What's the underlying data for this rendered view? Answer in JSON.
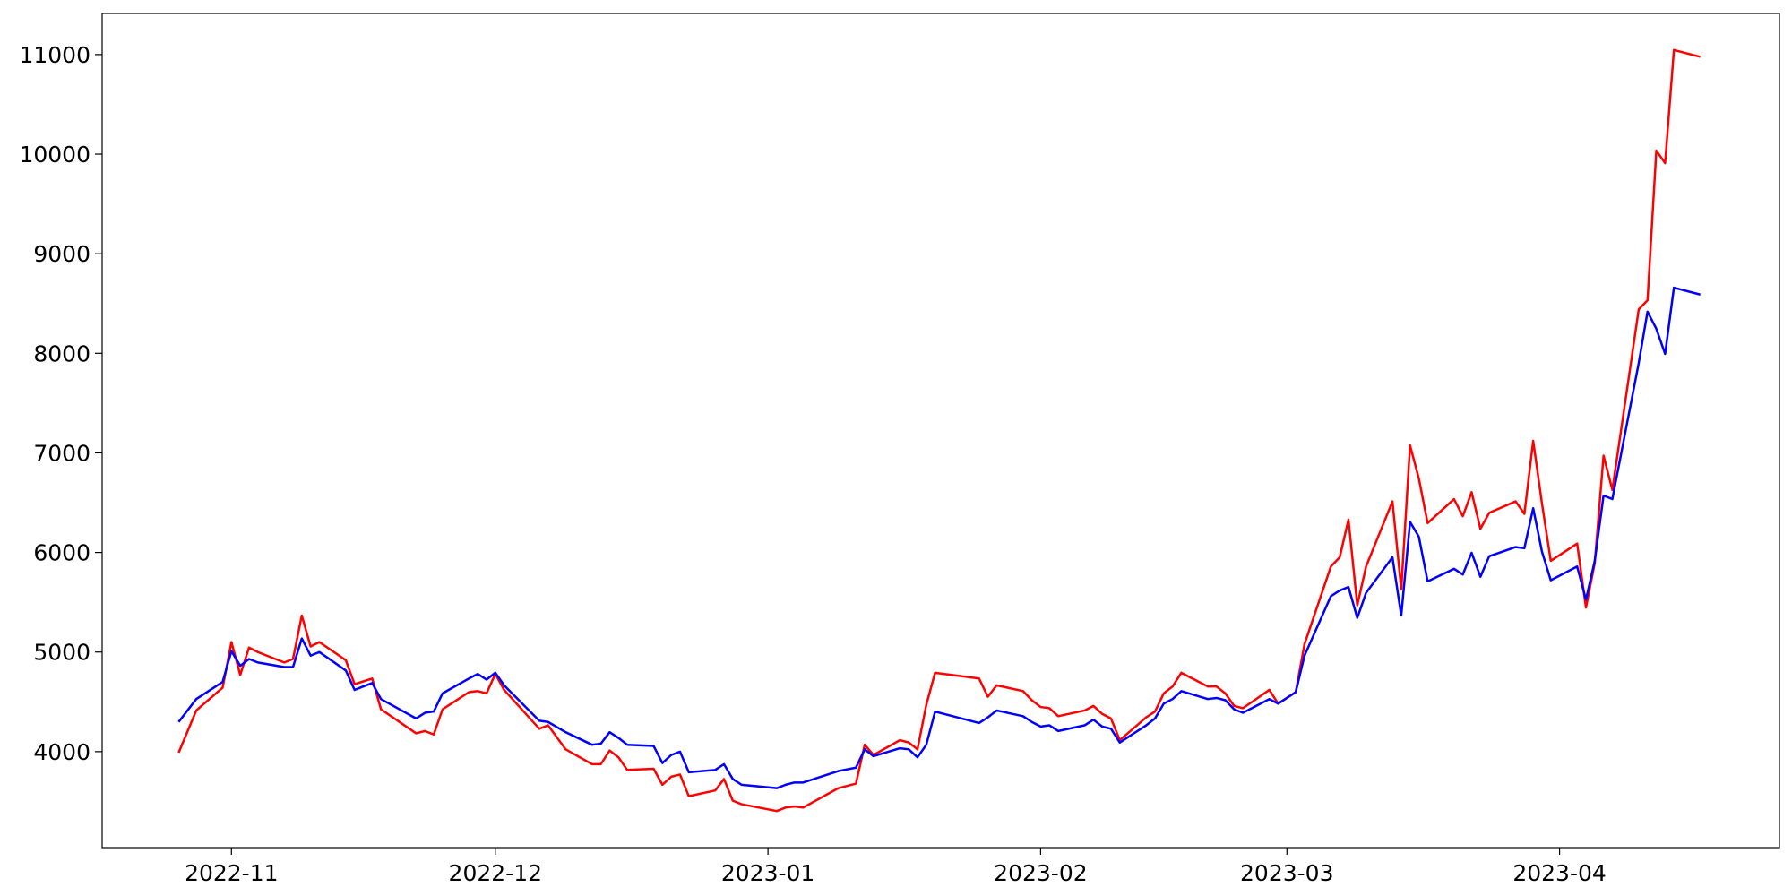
{
  "chart_data": {
    "type": "line",
    "x": [
      19291,
      19293,
      19296,
      19297,
      19298,
      19299,
      19300,
      19303,
      19304,
      19305,
      19306,
      19307,
      19310,
      19311,
      19313,
      19314,
      19318,
      19319,
      19320,
      19321,
      19324,
      19325,
      19326,
      19327,
      19328,
      19332,
      19333,
      19335,
      19338,
      19339,
      19340,
      19341,
      19342,
      19345,
      19346,
      19347,
      19348,
      19349,
      19352,
      19353,
      19354,
      19355,
      19359,
      19360,
      19361,
      19362,
      19366,
      19368,
      19369,
      19370,
      19373,
      19374,
      19375,
      19376,
      19377,
      19382,
      19383,
      19384,
      19387,
      19388,
      19389,
      19390,
      19391,
      19394,
      19395,
      19396,
      19397,
      19398,
      19401,
      19402,
      19403,
      19404,
      19405,
      19408,
      19409,
      19410,
      19411,
      19412,
      19415,
      19416,
      19418,
      19419,
      19422,
      19423,
      19424,
      19425,
      19426,
      19429,
      19430,
      19431,
      19432,
      19433,
      19436,
      19437,
      19438,
      19439,
      19440,
      19443,
      19444,
      19445,
      19446,
      19447,
      19450,
      19451,
      19452,
      19453,
      19454,
      19457,
      19458,
      19459,
      19460,
      19461,
      19464
    ],
    "series": [
      {
        "color": "red",
        "values": [
          3990,
          4413,
          4643,
          5100,
          4770,
          5045,
          5000,
          4895,
          4930,
          5366,
          5056,
          5100,
          4918,
          4677,
          4734,
          4425,
          4184,
          4207,
          4172,
          4425,
          4597,
          4608,
          4585,
          4780,
          4620,
          4230,
          4264,
          4023,
          3874,
          3874,
          4011,
          3943,
          3816,
          3828,
          3667,
          3748,
          3770,
          3552,
          3610,
          3725,
          3507,
          3472,
          3403,
          3438,
          3449,
          3438,
          3633,
          3679,
          4069,
          3966,
          4115,
          4092,
          4023,
          4470,
          4792,
          4734,
          4551,
          4666,
          4608,
          4516,
          4448,
          4436,
          4356,
          4413,
          4459,
          4379,
          4333,
          4115,
          4344,
          4402,
          4585,
          4654,
          4792,
          4654,
          4654,
          4585,
          4459,
          4436,
          4620,
          4482,
          4597,
          5079,
          5859,
          5951,
          6330,
          5469,
          5859,
          6513,
          5630,
          7075,
          6743,
          6295,
          6536,
          6364,
          6605,
          6238,
          6398,
          6513,
          6387,
          7121,
          6490,
          5916,
          6089,
          5446,
          5894,
          6972,
          6628,
          8441,
          8533,
          10036,
          9910,
          11046,
          10977
        ]
      },
      {
        "color": "blue",
        "values": [
          4298,
          4528,
          4700,
          5010,
          4861,
          4930,
          4895,
          4849,
          4849,
          5136,
          4964,
          5000,
          4815,
          4620,
          4689,
          4528,
          4333,
          4390,
          4402,
          4585,
          4734,
          4780,
          4723,
          4792,
          4666,
          4310,
          4298,
          4195,
          4069,
          4080,
          4195,
          4138,
          4069,
          4057,
          3885,
          3966,
          4000,
          3793,
          3816,
          3874,
          3725,
          3667,
          3633,
          3667,
          3690,
          3690,
          3805,
          3839,
          4023,
          3954,
          4034,
          4023,
          3943,
          4069,
          4402,
          4287,
          4344,
          4413,
          4356,
          4298,
          4252,
          4264,
          4207,
          4264,
          4321,
          4252,
          4230,
          4092,
          4264,
          4333,
          4482,
          4528,
          4608,
          4528,
          4539,
          4516,
          4425,
          4390,
          4528,
          4482,
          4597,
          4964,
          5561,
          5618,
          5653,
          5343,
          5595,
          5951,
          5366,
          6307,
          6158,
          5710,
          5836,
          5779,
          5997,
          5756,
          5962,
          6054,
          6043,
          6444,
          6008,
          5721,
          5859,
          5526,
          5916,
          6571,
          6536,
          7902,
          8418,
          8246,
          7994,
          8659,
          8590
        ]
      }
    ],
    "xlim": [
      19282.3,
      19473
    ],
    "xticks": [
      {
        "value": 19297,
        "label": "2022-11"
      },
      {
        "value": 19327,
        "label": "2022-12"
      },
      {
        "value": 19358,
        "label": "2023-01"
      },
      {
        "value": 19389,
        "label": "2023-02"
      },
      {
        "value": 19417,
        "label": "2023-03"
      },
      {
        "value": 19448,
        "label": "2023-04"
      }
    ],
    "ylim": [
      3036,
      11413
    ],
    "yticks": [
      4000,
      5000,
      6000,
      7000,
      8000,
      9000,
      10000,
      11000
    ],
    "grid": false
  }
}
